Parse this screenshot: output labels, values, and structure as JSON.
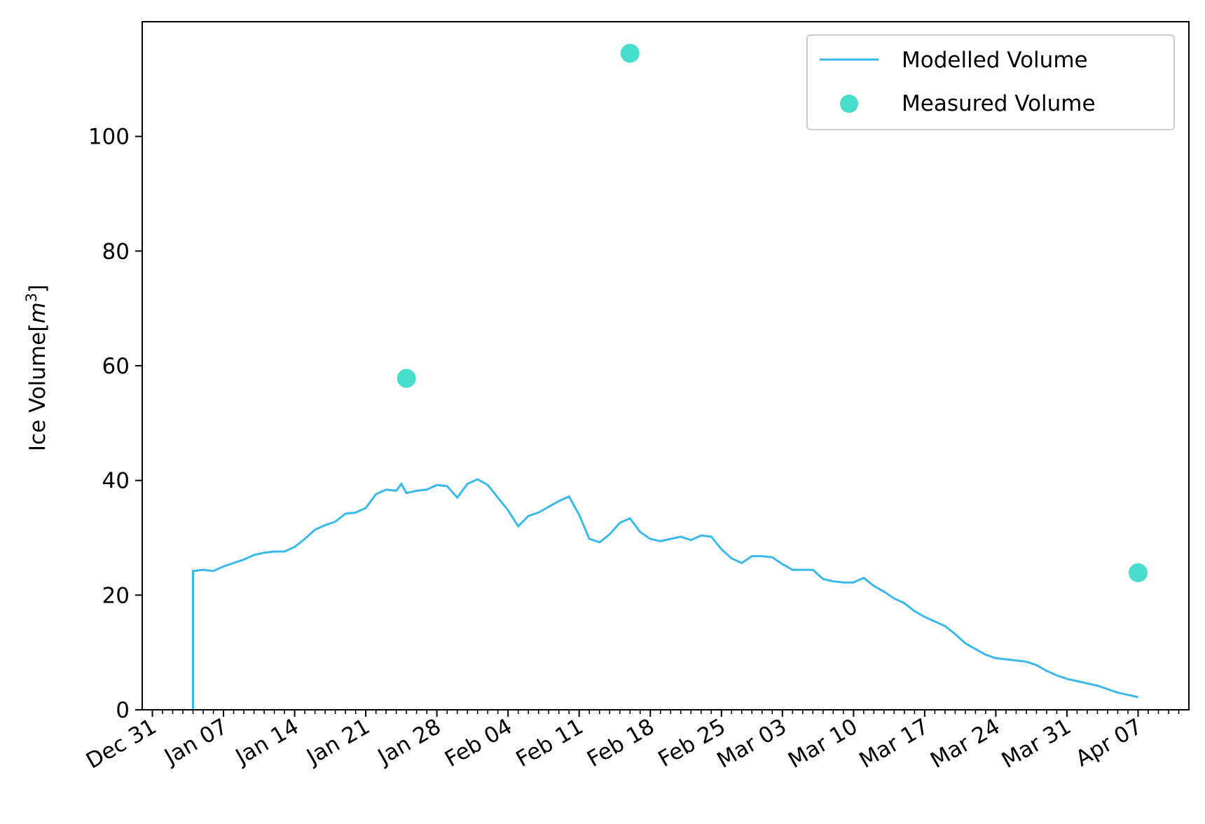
{
  "colors": {
    "modelled_line": "#3bb9ea",
    "measured_points": "#48dccc",
    "axis": "#000000",
    "legend_border": "#cccccc"
  },
  "chart_data": {
    "type": "line",
    "ylabel": "Ice Volume[m³]",
    "ylabel_main": "Ice Volume[",
    "ylabel_unit": "m",
    "ylabel_exp": "3",
    "ylabel_close": "]",
    "ylim": [
      0,
      120
    ],
    "xlim": [
      "2018-12-30",
      "2019-04-12"
    ],
    "grid": false,
    "legend": "top-right",
    "x_ticks": [
      {
        "date": "2018-12-31",
        "label": "Dec 31"
      },
      {
        "date": "2019-01-07",
        "label": "Jan 07"
      },
      {
        "date": "2019-01-14",
        "label": "Jan 14"
      },
      {
        "date": "2019-01-21",
        "label": "Jan 21"
      },
      {
        "date": "2019-01-28",
        "label": "Jan 28"
      },
      {
        "date": "2019-02-04",
        "label": "Feb 04"
      },
      {
        "date": "2019-02-11",
        "label": "Feb 11"
      },
      {
        "date": "2019-02-18",
        "label": "Feb 18"
      },
      {
        "date": "2019-02-25",
        "label": "Feb 25"
      },
      {
        "date": "2019-03-03",
        "label": "Mar 03"
      },
      {
        "date": "2019-03-10",
        "label": "Mar 10"
      },
      {
        "date": "2019-03-17",
        "label": "Mar 17"
      },
      {
        "date": "2019-03-24",
        "label": "Mar 24"
      },
      {
        "date": "2019-03-31",
        "label": "Mar 31"
      },
      {
        "date": "2019-04-07",
        "label": "Apr 07"
      }
    ],
    "y_ticks": [
      0,
      20,
      40,
      60,
      80,
      100
    ],
    "series": [
      {
        "name": "Modelled Volume",
        "kind": "line",
        "points": [
          [
            "2019-01-04",
            0
          ],
          [
            "2019-01-04",
            24.2
          ],
          [
            "2019-01-05",
            24.4
          ],
          [
            "2019-01-06",
            24.2
          ],
          [
            "2019-01-07",
            25.0
          ],
          [
            "2019-01-08",
            25.6
          ],
          [
            "2019-01-09",
            26.2
          ],
          [
            "2019-01-10",
            27.0
          ],
          [
            "2019-01-11",
            27.4
          ],
          [
            "2019-01-12",
            27.6
          ],
          [
            "2019-01-13",
            27.6
          ],
          [
            "2019-01-14",
            28.4
          ],
          [
            "2019-01-15",
            29.8
          ],
          [
            "2019-01-16",
            31.4
          ],
          [
            "2019-01-17",
            32.2
          ],
          [
            "2019-01-18",
            32.8
          ],
          [
            "2019-01-19",
            34.2
          ],
          [
            "2019-01-20",
            34.4
          ],
          [
            "2019-01-21",
            35.2
          ],
          [
            "2019-01-22",
            37.6
          ],
          [
            "2019-01-23",
            38.4
          ],
          [
            "2019-01-24",
            38.2
          ],
          [
            "2019-01-24T12",
            39.4
          ],
          [
            "2019-01-25",
            37.8
          ],
          [
            "2019-01-26",
            38.2
          ],
          [
            "2019-01-27",
            38.4
          ],
          [
            "2019-01-28",
            39.2
          ],
          [
            "2019-01-29",
            39.0
          ],
          [
            "2019-01-30",
            37.0
          ],
          [
            "2019-01-31",
            39.4
          ],
          [
            "2019-02-01",
            40.2
          ],
          [
            "2019-02-02",
            39.2
          ],
          [
            "2019-02-03",
            37.0
          ],
          [
            "2019-02-04",
            34.8
          ],
          [
            "2019-02-05",
            32.0
          ],
          [
            "2019-02-06",
            33.8
          ],
          [
            "2019-02-07",
            34.4
          ],
          [
            "2019-02-08",
            35.4
          ],
          [
            "2019-02-09",
            36.4
          ],
          [
            "2019-02-10",
            37.2
          ],
          [
            "2019-02-11",
            34.0
          ],
          [
            "2019-02-12",
            29.8
          ],
          [
            "2019-02-13",
            29.2
          ],
          [
            "2019-02-14",
            30.6
          ],
          [
            "2019-02-15",
            32.6
          ],
          [
            "2019-02-16",
            33.4
          ],
          [
            "2019-02-17",
            31.0
          ],
          [
            "2019-02-18",
            29.8
          ],
          [
            "2019-02-19",
            29.4
          ],
          [
            "2019-02-20",
            29.8
          ],
          [
            "2019-02-21",
            30.2
          ],
          [
            "2019-02-22",
            29.6
          ],
          [
            "2019-02-23",
            30.4
          ],
          [
            "2019-02-24",
            30.2
          ],
          [
            "2019-02-25",
            28.0
          ],
          [
            "2019-02-26",
            26.4
          ],
          [
            "2019-02-27",
            25.6
          ],
          [
            "2019-02-28",
            26.8
          ],
          [
            "2019-03-01",
            26.8
          ],
          [
            "2019-03-02",
            26.6
          ],
          [
            "2019-03-03",
            25.4
          ],
          [
            "2019-03-04",
            24.4
          ],
          [
            "2019-03-05",
            24.4
          ],
          [
            "2019-03-06",
            24.4
          ],
          [
            "2019-03-07",
            22.8
          ],
          [
            "2019-03-08",
            22.4
          ],
          [
            "2019-03-09",
            22.2
          ],
          [
            "2019-03-10",
            22.2
          ],
          [
            "2019-03-11",
            23.0
          ],
          [
            "2019-03-12",
            21.6
          ],
          [
            "2019-03-13",
            20.6
          ],
          [
            "2019-03-14",
            19.4
          ],
          [
            "2019-03-15",
            18.6
          ],
          [
            "2019-03-16",
            17.2
          ],
          [
            "2019-03-17",
            16.2
          ],
          [
            "2019-03-18",
            15.4
          ],
          [
            "2019-03-19",
            14.6
          ],
          [
            "2019-03-20",
            13.2
          ],
          [
            "2019-03-21",
            11.6
          ],
          [
            "2019-03-22",
            10.6
          ],
          [
            "2019-03-23",
            9.6
          ],
          [
            "2019-03-24",
            9.0
          ],
          [
            "2019-03-25",
            8.8
          ],
          [
            "2019-03-26",
            8.6
          ],
          [
            "2019-03-27",
            8.4
          ],
          [
            "2019-03-28",
            7.8
          ],
          [
            "2019-03-29",
            6.8
          ],
          [
            "2019-03-30",
            6.0
          ],
          [
            "2019-03-31",
            5.4
          ],
          [
            "2019-04-01",
            5.0
          ],
          [
            "2019-04-02",
            4.6
          ],
          [
            "2019-04-03",
            4.2
          ],
          [
            "2019-04-04",
            3.6
          ],
          [
            "2019-04-05",
            3.0
          ],
          [
            "2019-04-06",
            2.6
          ],
          [
            "2019-04-07",
            2.2
          ]
        ]
      },
      {
        "name": "Measured Volume",
        "kind": "scatter",
        "points": [
          [
            "2019-01-25",
            57.8
          ],
          [
            "2019-02-16",
            114.5
          ],
          [
            "2019-04-07",
            23.9
          ]
        ]
      }
    ]
  }
}
